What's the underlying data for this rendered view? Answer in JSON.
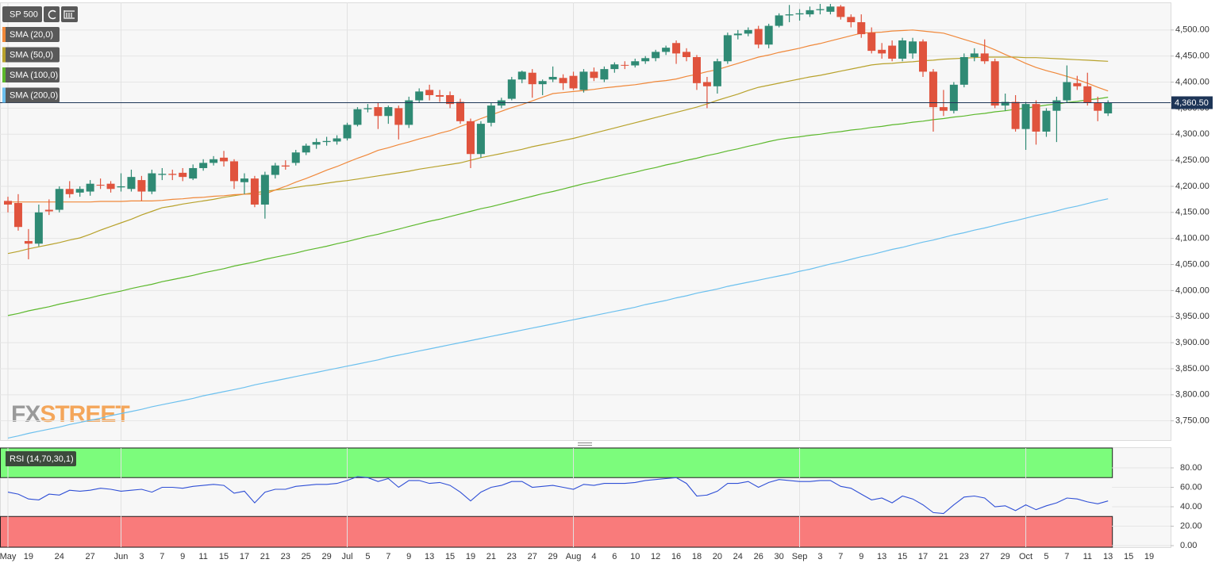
{
  "chart_data": {
    "type": "candlestick",
    "categories": [
      "May",
      null,
      "19",
      null,
      null,
      "24",
      null,
      null,
      "27",
      null,
      null,
      "Jun",
      null,
      "3",
      null,
      "7",
      null,
      "9",
      null,
      "11",
      null,
      "15",
      null,
      "17",
      null,
      "21",
      null,
      "23",
      null,
      "25",
      null,
      "29",
      null,
      "Jul",
      null,
      "5",
      null,
      "7",
      null,
      "9",
      null,
      "13",
      null,
      "15",
      null,
      "19",
      null,
      "21",
      null,
      "23",
      null,
      "27",
      null,
      "29",
      null,
      "Aug",
      null,
      "4",
      null,
      "6",
      null,
      "10",
      null,
      "12",
      null,
      "16",
      null,
      "18",
      null,
      "20",
      null,
      "24",
      null,
      "26",
      null,
      "30",
      null,
      "Sep",
      null,
      "3",
      null,
      "7",
      null,
      "9",
      null,
      "13",
      null,
      "15",
      null,
      "17",
      null,
      "21",
      null,
      "23",
      null,
      "27",
      null,
      "29",
      null,
      "Oct",
      null,
      "5",
      null,
      "7",
      null,
      "11",
      null,
      "13",
      null,
      "15",
      null,
      "19"
    ],
    "series": [
      {
        "name": "SP 500",
        "up_color": "#2f8a74",
        "down_color": "#e0533d",
        "open": [
          4172,
          4168,
          4095,
          4090,
          4155,
          4155,
          4195,
          4188,
          4190,
          4203,
          4205,
          4198,
          4195,
          4212,
          4190,
          4222,
          4224,
          4226,
          4215,
          4235,
          4245,
          4255,
          4248,
          4208,
          4215,
          4165,
          4222,
          4240,
          4245,
          4265,
          4280,
          4285,
          4286,
          4292,
          4318,
          4348,
          4352,
          4335,
          4350,
          4318,
          4365,
          4385,
          4375,
          4375,
          4362,
          4325,
          4262,
          4322,
          4355,
          4368,
          4405,
          4418,
          4396,
          4405,
          4408,
          4412,
          4385,
          4420,
          4405,
          4425,
          4433,
          4432,
          4440,
          4446,
          4458,
          4475,
          4458,
          4448,
          4400,
          4392,
          4440,
          4490,
          4493,
          4502,
          4472,
          4508,
          4528,
          4530,
          4530,
          4538,
          4535,
          4545,
          4525,
          4515,
          4495,
          4462,
          4470,
          4445,
          4455,
          4478,
          4420,
          4352,
          4345,
          4395,
          4448,
          4455,
          4440,
          4355,
          4362,
          4310,
          4358,
          4305,
          4345,
          4365,
          4398,
          4392,
          4360,
          4340,
          null,
          null,
          null,
          null
        ],
        "high": [
          4180,
          4185,
          4118,
          4165,
          4175,
          4200,
          4210,
          4200,
          4212,
          4215,
          4210,
          4225,
          4232,
          4220,
          4232,
          4235,
          4232,
          4235,
          4242,
          4252,
          4258,
          4268,
          4252,
          4225,
          4220,
          4228,
          4245,
          4250,
          4270,
          4282,
          4292,
          4295,
          4298,
          4322,
          4352,
          4358,
          4360,
          4355,
          4355,
          4372,
          4388,
          4395,
          4385,
          4382,
          4368,
          4330,
          4325,
          4360,
          4370,
          4410,
          4422,
          4425,
          4405,
          4430,
          4415,
          4420,
          4425,
          4428,
          4430,
          4438,
          4440,
          4445,
          4450,
          4462,
          4470,
          4480,
          4465,
          4452,
          4410,
          4445,
          4495,
          4500,
          4505,
          4508,
          4512,
          4532,
          4548,
          4540,
          4545,
          4550,
          4550,
          4548,
          4530,
          4530,
          4505,
          4475,
          4480,
          4485,
          4485,
          4482,
          4425,
          4385,
          4400,
          4455,
          4465,
          4482,
          4445,
          4378,
          4375,
          4362,
          4365,
          4350,
          4372,
          4432,
          4412,
          4418,
          4372,
          4365,
          null,
          null,
          null,
          null
        ],
        "low": [
          4150,
          4115,
          4060,
          4085,
          4145,
          4150,
          4178,
          4180,
          4182,
          4195,
          4188,
          4190,
          4190,
          4172,
          4185,
          4212,
          4212,
          4210,
          4212,
          4230,
          4240,
          4238,
          4195,
          4185,
          4160,
          4138,
          4215,
          4232,
          4240,
          4260,
          4272,
          4278,
          4280,
          4288,
          4315,
          4342,
          4310,
          4320,
          4290,
          4312,
          4360,
          4365,
          4362,
          4350,
          4320,
          4235,
          4255,
          4315,
          4350,
          4365,
          4398,
          4370,
          4375,
          4400,
          4385,
          4385,
          4380,
          4402,
          4400,
          4418,
          4425,
          4428,
          4435,
          4440,
          4452,
          4435,
          4440,
          4385,
          4350,
          4378,
          4435,
          4482,
          4488,
          4465,
          4465,
          4505,
          4515,
          4518,
          4525,
          4530,
          4530,
          4520,
          4505,
          4485,
          4455,
          4445,
          4440,
          4440,
          4445,
          4410,
          4305,
          4335,
          4340,
          4390,
          4440,
          4435,
          4350,
          4345,
          4305,
          4270,
          4280,
          4295,
          4285,
          4360,
          4385,
          4355,
          4325,
          4335,
          null,
          null,
          null,
          null
        ],
        "close": [
          4165,
          4122,
          4090,
          4150,
          4152,
          4195,
          4185,
          4195,
          4205,
          4202,
          4195,
          4200,
          4218,
          4190,
          4225,
          4224,
          4222,
          4218,
          4235,
          4245,
          4252,
          4248,
          4210,
          4215,
          4165,
          4222,
          4240,
          4238,
          4265,
          4278,
          4285,
          4287,
          4292,
          4318,
          4348,
          4350,
          4335,
          4352,
          4318,
          4365,
          4382,
          4375,
          4372,
          4358,
          4325,
          4262,
          4320,
          4355,
          4365,
          4405,
          4420,
          4396,
          4402,
          4410,
          4398,
          4388,
          4420,
          4408,
          4425,
          4434,
          4432,
          4440,
          4446,
          4458,
          4466,
          4455,
          4448,
          4398,
          4392,
          4440,
          4490,
          4493,
          4500,
          4472,
          4508,
          4528,
          4530,
          4532,
          4538,
          4540,
          4545,
          4525,
          4515,
          4492,
          4460,
          4455,
          4445,
          4480,
          4478,
          4420,
          4352,
          4345,
          4395,
          4448,
          4455,
          4440,
          4355,
          4362,
          4310,
          4358,
          4305,
          4345,
          4365,
          4400,
          4392,
          4360,
          4345,
          4360.5,
          null,
          null,
          null,
          null
        ]
      }
    ],
    "overlays": [
      {
        "name": "SMA (20,0)",
        "color": "#f0883a",
        "values": [
          4170,
          4170,
          4170,
          4170,
          4170,
          4170,
          4170,
          4170,
          4170,
          4171,
          4171,
          4171,
          4172,
          4172,
          4172,
          4173,
          4175,
          4176,
          4178,
          4179,
          4181,
          4182,
          4184,
          4185,
          4185,
          4185,
          4193,
          4200,
          4208,
          4215,
          4223,
          4231,
          4238,
          4246,
          4254,
          4261,
          4269,
          4274,
          4280,
          4285,
          4291,
          4296,
          4302,
          4307,
          4315,
          4322,
          4330,
          4337,
          4344,
          4351,
          4357,
          4364,
          4371,
          4378,
          4380,
          4382,
          4384,
          4386,
          4389,
          4391,
          4393,
          4395,
          4398,
          4401,
          4403,
          4406,
          4411,
          4415,
          4420,
          4424,
          4430,
          4436,
          4442,
          4448,
          4452,
          4457,
          4461,
          4465,
          4470,
          4474,
          4479,
          4484,
          4489,
          4494,
          4495,
          4496,
          4498,
          4499,
          4500,
          4498,
          4496,
          4494,
          4488,
          4482,
          4476,
          4470,
          4462,
          4453,
          4445,
          4436,
          4428,
          4422,
          4417,
          4411,
          4405,
          4398,
          4390,
          4383,
          null,
          null,
          null,
          null
        ]
      },
      {
        "name": "SMA (50,0)",
        "color": "#b8a22c",
        "values": [
          4071,
          4075,
          4080,
          4084,
          4088,
          4092,
          4097,
          4101,
          4108,
          4116,
          4123,
          4130,
          4137,
          4145,
          4152,
          4159,
          4162,
          4166,
          4169,
          4172,
          4175,
          4179,
          4182,
          4185,
          4188,
          4190,
          4193,
          4195,
          4198,
          4201,
          4203,
          4206,
          4209,
          4211,
          4214,
          4217,
          4220,
          4223,
          4226,
          4229,
          4233,
          4236,
          4239,
          4242,
          4245,
          4250,
          4255,
          4259,
          4263,
          4267,
          4271,
          4276,
          4280,
          4284,
          4288,
          4292,
          4297,
          4302,
          4307,
          4312,
          4317,
          4322,
          4327,
          4332,
          4337,
          4342,
          4347,
          4352,
          4358,
          4365,
          4371,
          4377,
          4384,
          4390,
          4394,
          4398,
          4402,
          4406,
          4410,
          4413,
          4417,
          4421,
          4425,
          4429,
          4433,
          4435,
          4436,
          4438,
          4439,
          4441,
          4442,
          4444,
          4445,
          4446,
          4447,
          4448,
          4448,
          4448,
          4448,
          4447,
          4447,
          4446,
          4445,
          4444,
          4443,
          4442,
          4441,
          4440,
          null,
          null,
          null,
          null
        ]
      },
      {
        "name": "SMA (100,0)",
        "color": "#5cb82c",
        "values": [
          3952,
          3956,
          3961,
          3965,
          3969,
          3974,
          3978,
          3982,
          3986,
          3991,
          3995,
          3999,
          4004,
          4008,
          4012,
          4017,
          4021,
          4025,
          4029,
          4034,
          4038,
          4042,
          4047,
          4051,
          4055,
          4060,
          4064,
          4068,
          4072,
          4077,
          4081,
          4085,
          4090,
          4094,
          4099,
          4104,
          4108,
          4113,
          4118,
          4123,
          4128,
          4133,
          4137,
          4142,
          4147,
          4152,
          4157,
          4161,
          4166,
          4171,
          4176,
          4181,
          4186,
          4190,
          4195,
          4200,
          4205,
          4209,
          4214,
          4218,
          4223,
          4227,
          4232,
          4236,
          4241,
          4245,
          4250,
          4254,
          4259,
          4263,
          4268,
          4272,
          4277,
          4281,
          4286,
          4290,
          4293,
          4295,
          4298,
          4300,
          4303,
          4305,
          4308,
          4310,
          4313,
          4315,
          4318,
          4320,
          4323,
          4325,
          4328,
          4330,
          4333,
          4335,
          4338,
          4340,
          4343,
          4345,
          4348,
          4350,
          4353,
          4356,
          4358,
          4361,
          4363,
          4366,
          4368,
          4371,
          null,
          null,
          null,
          null
        ]
      },
      {
        "name": "SMA (200,0)",
        "color": "#6cc0ee",
        "values": [
          3717,
          3721,
          3726,
          3730,
          3734,
          3738,
          3743,
          3747,
          3751,
          3755,
          3760,
          3764,
          3768,
          3772,
          3777,
          3781,
          3785,
          3789,
          3793,
          3798,
          3802,
          3806,
          3810,
          3814,
          3819,
          3823,
          3827,
          3831,
          3835,
          3839,
          3843,
          3847,
          3851,
          3855,
          3859,
          3863,
          3867,
          3872,
          3876,
          3880,
          3884,
          3888,
          3892,
          3896,
          3900,
          3904,
          3908,
          3912,
          3916,
          3920,
          3924,
          3928,
          3932,
          3936,
          3940,
          3944,
          3948,
          3952,
          3956,
          3960,
          3964,
          3968,
          3973,
          3977,
          3981,
          3986,
          3990,
          3995,
          3999,
          4003,
          4008,
          4012,
          4016,
          4020,
          4024,
          4028,
          4032,
          4037,
          4041,
          4046,
          4051,
          4055,
          4060,
          4065,
          4069,
          4074,
          4079,
          4083,
          4088,
          4093,
          4097,
          4102,
          4107,
          4111,
          4116,
          4120,
          4125,
          4130,
          4134,
          4139,
          4144,
          4148,
          4153,
          4158,
          4162,
          4167,
          4172,
          4176,
          null,
          null,
          null,
          null
        ]
      }
    ],
    "last_price": {
      "value": 4360.5,
      "label": "4,360.50"
    },
    "ylim": [
      3713,
      4553
    ],
    "yticks": [
      {
        "value": 3750,
        "label": "3,750.00"
      },
      {
        "value": 3800,
        "label": "3,800.00"
      },
      {
        "value": 3850,
        "label": "3,850.00"
      },
      {
        "value": 3900,
        "label": "3,900.00"
      },
      {
        "value": 3950,
        "label": "3,950.00"
      },
      {
        "value": 4000,
        "label": "4,000.00"
      },
      {
        "value": 4050,
        "label": "4,050.00"
      },
      {
        "value": 4100,
        "label": "4,100.00"
      },
      {
        "value": 4150,
        "label": "4,150.00"
      },
      {
        "value": 4200,
        "label": "4,200.00"
      },
      {
        "value": 4250,
        "label": "4,250.00"
      },
      {
        "value": 4300,
        "label": "4,300.00"
      },
      {
        "value": 4350,
        "label": "4,350.00"
      },
      {
        "value": 4400,
        "label": "4,400.00"
      },
      {
        "value": 4450,
        "label": "4,450.00"
      },
      {
        "value": 4500,
        "label": "4,500.00"
      }
    ],
    "grid": true,
    "watermark": [
      "FX",
      "STREET"
    ],
    "rsi": {
      "type": "line",
      "name": "RSI (14,70,30,1)",
      "color": "#2f4fd6",
      "overbought": 70,
      "oversold": 30,
      "overbought_color": "#7cfc7c",
      "oversold_color": "#f97b7b",
      "values": [
        55,
        53,
        48,
        47,
        53,
        52,
        57,
        56,
        57,
        59,
        58,
        56,
        57,
        58,
        55,
        60,
        60,
        59,
        61,
        62,
        63,
        62,
        54,
        56,
        44,
        55,
        58,
        58,
        61,
        62,
        63,
        63,
        64,
        67,
        71,
        70,
        66,
        69,
        60,
        67,
        67,
        64,
        65,
        62,
        55,
        46,
        55,
        60,
        62,
        66,
        66,
        60,
        61,
        62,
        60,
        58,
        63,
        62,
        64,
        64,
        64,
        65,
        67,
        68,
        69,
        70,
        64,
        51,
        52,
        56,
        64,
        64,
        66,
        60,
        65,
        68,
        67,
        66,
        66,
        67,
        67,
        61,
        59,
        53,
        47,
        49,
        44,
        51,
        48,
        42,
        34,
        33,
        42,
        50,
        51,
        49,
        40,
        41,
        36,
        42,
        37,
        41,
        44,
        49,
        48,
        45,
        43,
        46,
        null,
        null,
        null,
        null
      ],
      "ylim": [
        -1.6,
        100.4
      ],
      "yticks": [
        {
          "value": 0,
          "label": "0.00"
        },
        {
          "value": 20,
          "label": "20.00"
        },
        {
          "value": 40,
          "label": "40.00"
        },
        {
          "value": 60,
          "label": "60.00"
        },
        {
          "value": 80,
          "label": "80.00"
        }
      ]
    }
  }
}
